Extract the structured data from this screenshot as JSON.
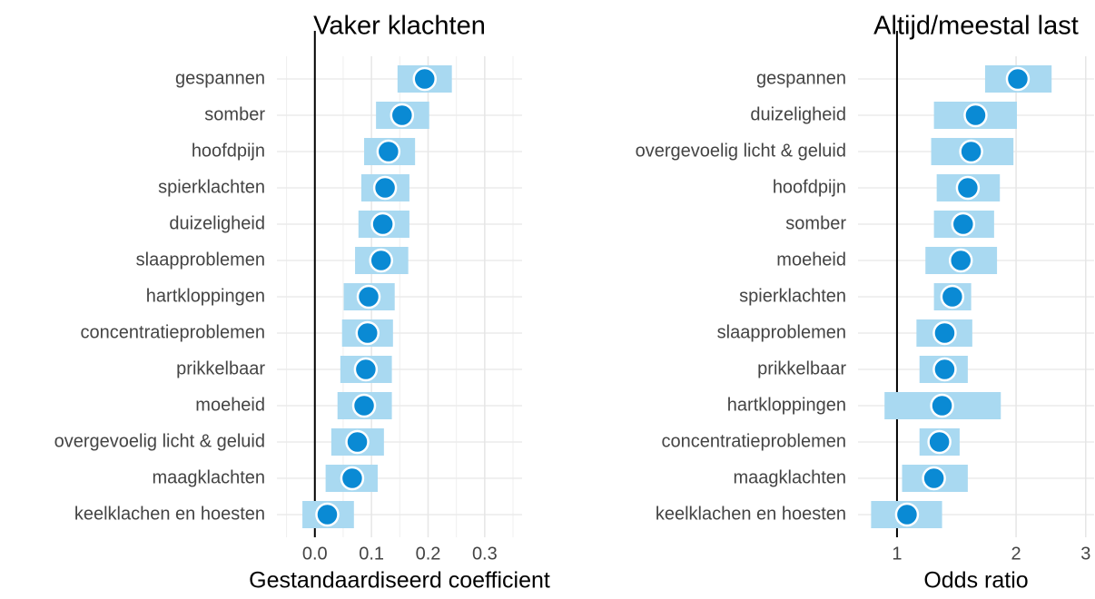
{
  "chart_data": [
    {
      "type": "interval",
      "title": "Vaker klachten",
      "x_label": "Gestandaardiseerd coefficient",
      "categories": [
        "gespannen",
        "somber",
        "hoofdpijn",
        "spierklachten",
        "duizeligheid",
        "slaapproblemen",
        "hartkloppingen",
        "concentratieproblemen",
        "prikkelbaar",
        "moeheid",
        "overgevoelig licht & geluid",
        "maagklachten",
        "keelklachen en hoesten"
      ],
      "values": [
        0.194,
        0.154,
        0.13,
        0.124,
        0.12,
        0.117,
        0.095,
        0.093,
        0.09,
        0.087,
        0.075,
        0.066,
        0.022
      ],
      "lower": [
        0.146,
        0.108,
        0.087,
        0.082,
        0.077,
        0.071,
        0.051,
        0.048,
        0.045,
        0.04,
        0.029,
        0.019,
        -0.022
      ],
      "upper": [
        0.242,
        0.202,
        0.177,
        0.167,
        0.167,
        0.165,
        0.141,
        0.138,
        0.136,
        0.136,
        0.122,
        0.111,
        0.069
      ],
      "xlim": [
        -0.067,
        0.366
      ],
      "xticks": [
        {
          "value": 0,
          "label": "0.0"
        },
        0.1,
        0.2,
        0.3
      ],
      "log": false,
      "reference_line": 0,
      "grid": true,
      "color": "#0a8ad4",
      "interval_color": "#a9d9f1"
    },
    {
      "type": "interval",
      "title": "Altijd/meestal last",
      "x_label": "Odds ratio",
      "categories": [
        "gespannen",
        "duizeligheid",
        "overgevoelig licht & geluid",
        "hoofdpijn",
        "somber",
        "moeheid",
        "spierklachten",
        "slaapproblemen",
        "prikkelbaar",
        "hartkloppingen",
        "concentratieproblemen",
        "maagklachten",
        "keelklachen en hoesten"
      ],
      "values": [
        2.02,
        1.58,
        1.54,
        1.51,
        1.47,
        1.45,
        1.38,
        1.32,
        1.32,
        1.3,
        1.28,
        1.24,
        1.06
      ],
      "lower": [
        1.67,
        1.24,
        1.22,
        1.26,
        1.24,
        1.18,
        1.24,
        1.12,
        1.14,
        0.93,
        1.14,
        1.03,
        0.86
      ],
      "upper": [
        2.46,
        2.01,
        1.97,
        1.82,
        1.76,
        1.79,
        1.54,
        1.55,
        1.51,
        1.83,
        1.44,
        1.51,
        1.3
      ],
      "xlim": [
        0.797,
        3.15
      ],
      "xticks": [
        1,
        2,
        3
      ],
      "log": true,
      "reference_line": 1,
      "grid": true,
      "color": "#0a8ad4",
      "interval_color": "#a9d9f1"
    }
  ]
}
